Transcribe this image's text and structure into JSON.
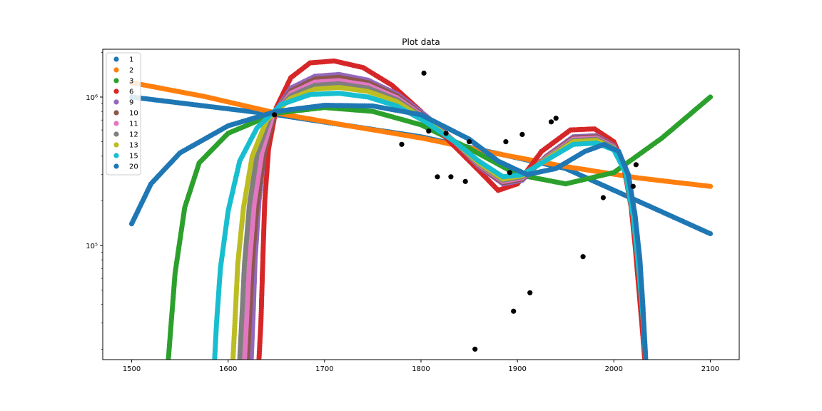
{
  "chart_data": {
    "type": "scatter",
    "title": "Plot data",
    "xlabel": "",
    "ylabel": "",
    "xlim": [
      1470,
      2130
    ],
    "ylim": [
      17000,
      2100000
    ],
    "yscale": "log",
    "x_ticks": [
      1500,
      1600,
      1700,
      1800,
      1900,
      2000,
      2100
    ],
    "x_tick_labels": [
      "1500",
      "1600",
      "1700",
      "1800",
      "1900",
      "2000",
      "2100"
    ],
    "y_major_ticks": [
      100000,
      1000000
    ],
    "y_tick_labels": [
      "10⁵",
      "10⁶"
    ],
    "grid": false,
    "legend_position": "top-left",
    "series": [
      {
        "name": "1",
        "color": "#1f77b4",
        "x": [
          1500,
          1650,
          1800,
          1950,
          2100
        ],
        "y": [
          1000000,
          760000,
          540000,
          330000,
          120000
        ]
      },
      {
        "name": "2",
        "color": "#ff7f0e",
        "x": [
          1500,
          1575,
          1650,
          1725,
          1800,
          1875,
          1950,
          2025,
          2100
        ],
        "y": [
          1250000,
          1010000,
          780000,
          640000,
          530000,
          420000,
          340000,
          285000,
          250000
        ]
      },
      {
        "name": "3",
        "color": "#2ca02c",
        "x": [
          1538,
          1540,
          1545,
          1555,
          1570,
          1600,
          1650,
          1700,
          1750,
          1800,
          1850,
          1900,
          1950,
          2000,
          2050,
          2100
        ],
        "y": [
          17000,
          25000,
          65000,
          180000,
          360000,
          570000,
          780000,
          850000,
          800000,
          650000,
          450000,
          300000,
          260000,
          310000,
          530000,
          1000000
        ]
      },
      {
        "name": "6",
        "color": "#d62728",
        "x": [
          1632,
          1634,
          1636,
          1638,
          1642,
          1650,
          1665,
          1685,
          1710,
          1740,
          1770,
          1800,
          1830,
          1860,
          1880,
          1900,
          1925,
          1955,
          1980,
          2000,
          2010,
          2018,
          2022,
          2026,
          2030,
          2032
        ],
        "y": [
          17000,
          30000,
          80000,
          200000,
          450000,
          850000,
          1350000,
          1700000,
          1750000,
          1580000,
          1200000,
          800000,
          500000,
          320000,
          235000,
          260000,
          430000,
          600000,
          610000,
          500000,
          350000,
          180000,
          100000,
          50000,
          25000,
          17000
        ]
      },
      {
        "name": "9",
        "color": "#9467bd",
        "x": [
          1624,
          1626,
          1628,
          1632,
          1638,
          1648,
          1665,
          1690,
          1715,
          1745,
          1775,
          1805,
          1835,
          1860,
          1885,
          1905,
          1930,
          1958,
          1982,
          2000,
          2012,
          2020,
          2025,
          2030,
          2033
        ],
        "y": [
          17000,
          35000,
          80000,
          200000,
          450000,
          780000,
          1150000,
          1380000,
          1420000,
          1300000,
          1050000,
          750000,
          500000,
          340000,
          260000,
          275000,
          400000,
          540000,
          550000,
          470000,
          330000,
          170000,
          80000,
          35000,
          17000
        ]
      },
      {
        "name": "10",
        "color": "#8c564b",
        "x": [
          1620,
          1622,
          1625,
          1630,
          1638,
          1648,
          1665,
          1690,
          1715,
          1745,
          1775,
          1805,
          1835,
          1860,
          1885,
          1905,
          1930,
          1958,
          1982,
          2000,
          2012,
          2020,
          2025,
          2030,
          2033
        ],
        "y": [
          17000,
          30000,
          75000,
          190000,
          430000,
          760000,
          1100000,
          1320000,
          1360000,
          1250000,
          1020000,
          730000,
          500000,
          345000,
          265000,
          280000,
          395000,
          530000,
          540000,
          465000,
          325000,
          165000,
          80000,
          35000,
          17000
        ]
      },
      {
        "name": "11",
        "color": "#e377c2",
        "x": [
          1617,
          1619,
          1622,
          1627,
          1635,
          1646,
          1665,
          1690,
          1715,
          1745,
          1775,
          1805,
          1835,
          1860,
          1885,
          1905,
          1930,
          1958,
          1982,
          2000,
          2012,
          2020,
          2025,
          2030,
          2033
        ],
        "y": [
          17000,
          30000,
          75000,
          190000,
          420000,
          740000,
          1060000,
          1260000,
          1290000,
          1200000,
          990000,
          720000,
          500000,
          350000,
          270000,
          285000,
          390000,
          520000,
          530000,
          460000,
          320000,
          160000,
          80000,
          35000,
          17000
        ]
      },
      {
        "name": "12",
        "color": "#7f7f7f",
        "x": [
          1612,
          1614,
          1617,
          1622,
          1630,
          1643,
          1665,
          1690,
          1715,
          1745,
          1775,
          1805,
          1835,
          1860,
          1885,
          1905,
          1930,
          1958,
          1982,
          2000,
          2012,
          2020,
          2025,
          2030,
          2033
        ],
        "y": [
          17000,
          30000,
          75000,
          185000,
          410000,
          720000,
          1020000,
          1200000,
          1230000,
          1150000,
          960000,
          710000,
          500000,
          355000,
          275000,
          290000,
          385000,
          510000,
          520000,
          455000,
          320000,
          160000,
          80000,
          35000,
          17000
        ]
      },
      {
        "name": "13",
        "color": "#bcbd22",
        "x": [
          1605,
          1607,
          1610,
          1616,
          1625,
          1640,
          1665,
          1690,
          1715,
          1745,
          1775,
          1805,
          1835,
          1860,
          1885,
          1905,
          1930,
          1958,
          1982,
          2000,
          2012,
          2020,
          2025,
          2030,
          2033
        ],
        "y": [
          17000,
          30000,
          75000,
          180000,
          400000,
          700000,
          980000,
          1130000,
          1160000,
          1090000,
          930000,
          700000,
          500000,
          360000,
          280000,
          295000,
          380000,
          500000,
          510000,
          450000,
          315000,
          160000,
          80000,
          35000,
          17000
        ]
      },
      {
        "name": "15",
        "color": "#17becf",
        "x": [
          1586,
          1588,
          1592,
          1600,
          1612,
          1630,
          1655,
          1685,
          1715,
          1745,
          1775,
          1805,
          1835,
          1860,
          1885,
          1905,
          1930,
          1958,
          1982,
          2000,
          2012,
          2020,
          2025,
          2030,
          2033
        ],
        "y": [
          17000,
          30000,
          70000,
          170000,
          370000,
          620000,
          890000,
          1040000,
          1060000,
          1000000,
          870000,
          680000,
          500000,
          370000,
          290000,
          300000,
          375000,
          480000,
          490000,
          440000,
          310000,
          160000,
          80000,
          35000,
          17000
        ]
      },
      {
        "name": "20",
        "color": "#1f77b4",
        "x": [
          1500,
          1520,
          1550,
          1600,
          1650,
          1700,
          1750,
          1800,
          1850,
          1880,
          1910,
          1940,
          1970,
          1990,
          2005,
          2015,
          2022,
          2027,
          2030,
          2033
        ],
        "y": [
          140000,
          260000,
          420000,
          640000,
          800000,
          880000,
          870000,
          760000,
          520000,
          370000,
          300000,
          330000,
          430000,
          480000,
          430000,
          300000,
          160000,
          80000,
          40000,
          17000
        ]
      }
    ],
    "observations": {
      "color": "#000000",
      "x": [
        1648,
        1780,
        1803,
        1808,
        1817,
        1826,
        1831,
        1846,
        1850,
        1856,
        1888,
        1892,
        1896,
        1905,
        1913,
        1935,
        1940,
        1968,
        1989,
        2020,
        2023
      ],
      "y": [
        760000,
        480000,
        1450000,
        590000,
        290000,
        570000,
        290000,
        270000,
        500000,
        20000,
        500000,
        310000,
        36000,
        560000,
        48000,
        680000,
        720000,
        84000,
        210000,
        250000,
        350000
      ]
    }
  }
}
